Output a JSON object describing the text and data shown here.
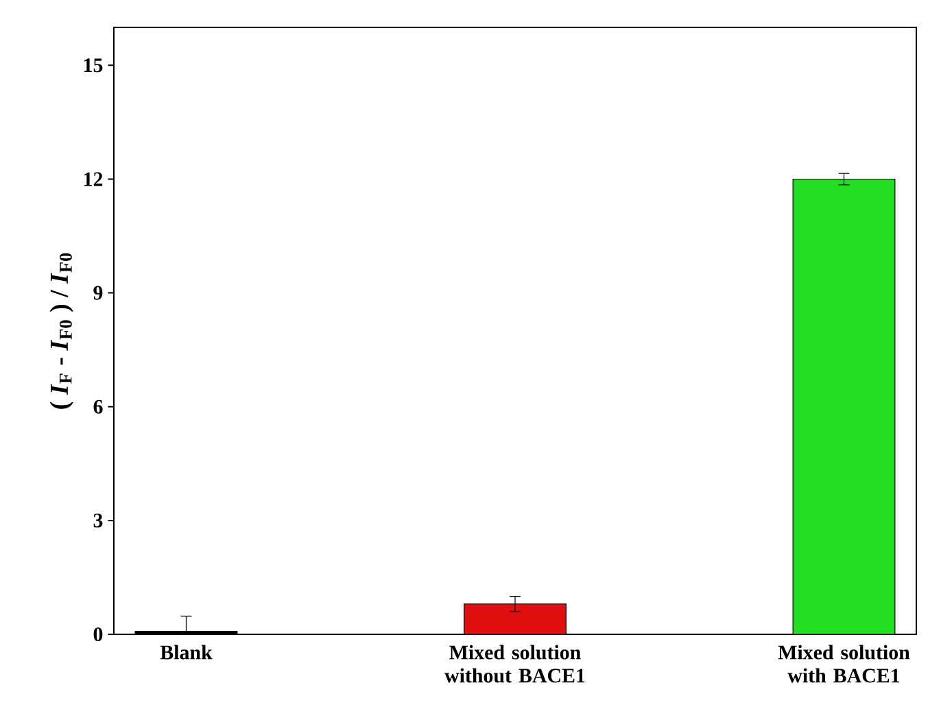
{
  "chart_data": {
    "type": "bar",
    "ylabel": "( *I*$_{F}$ - *I*$_{F0}$ ) / *I*$_{F0}$",
    "categories": [
      "Blank",
      "Mixed solution without  BACE1",
      "Mixed solution with BACE1"
    ],
    "values": [
      0.08,
      0.8,
      12.0
    ],
    "errors": [
      0.4,
      0.2,
      0.15
    ],
    "colors": [
      "#000000",
      "#e01010",
      "#22dd22"
    ],
    "ylim": [
      0,
      16
    ],
    "yticks": [
      0,
      3,
      6,
      9,
      12,
      15
    ],
    "grid": false
  }
}
